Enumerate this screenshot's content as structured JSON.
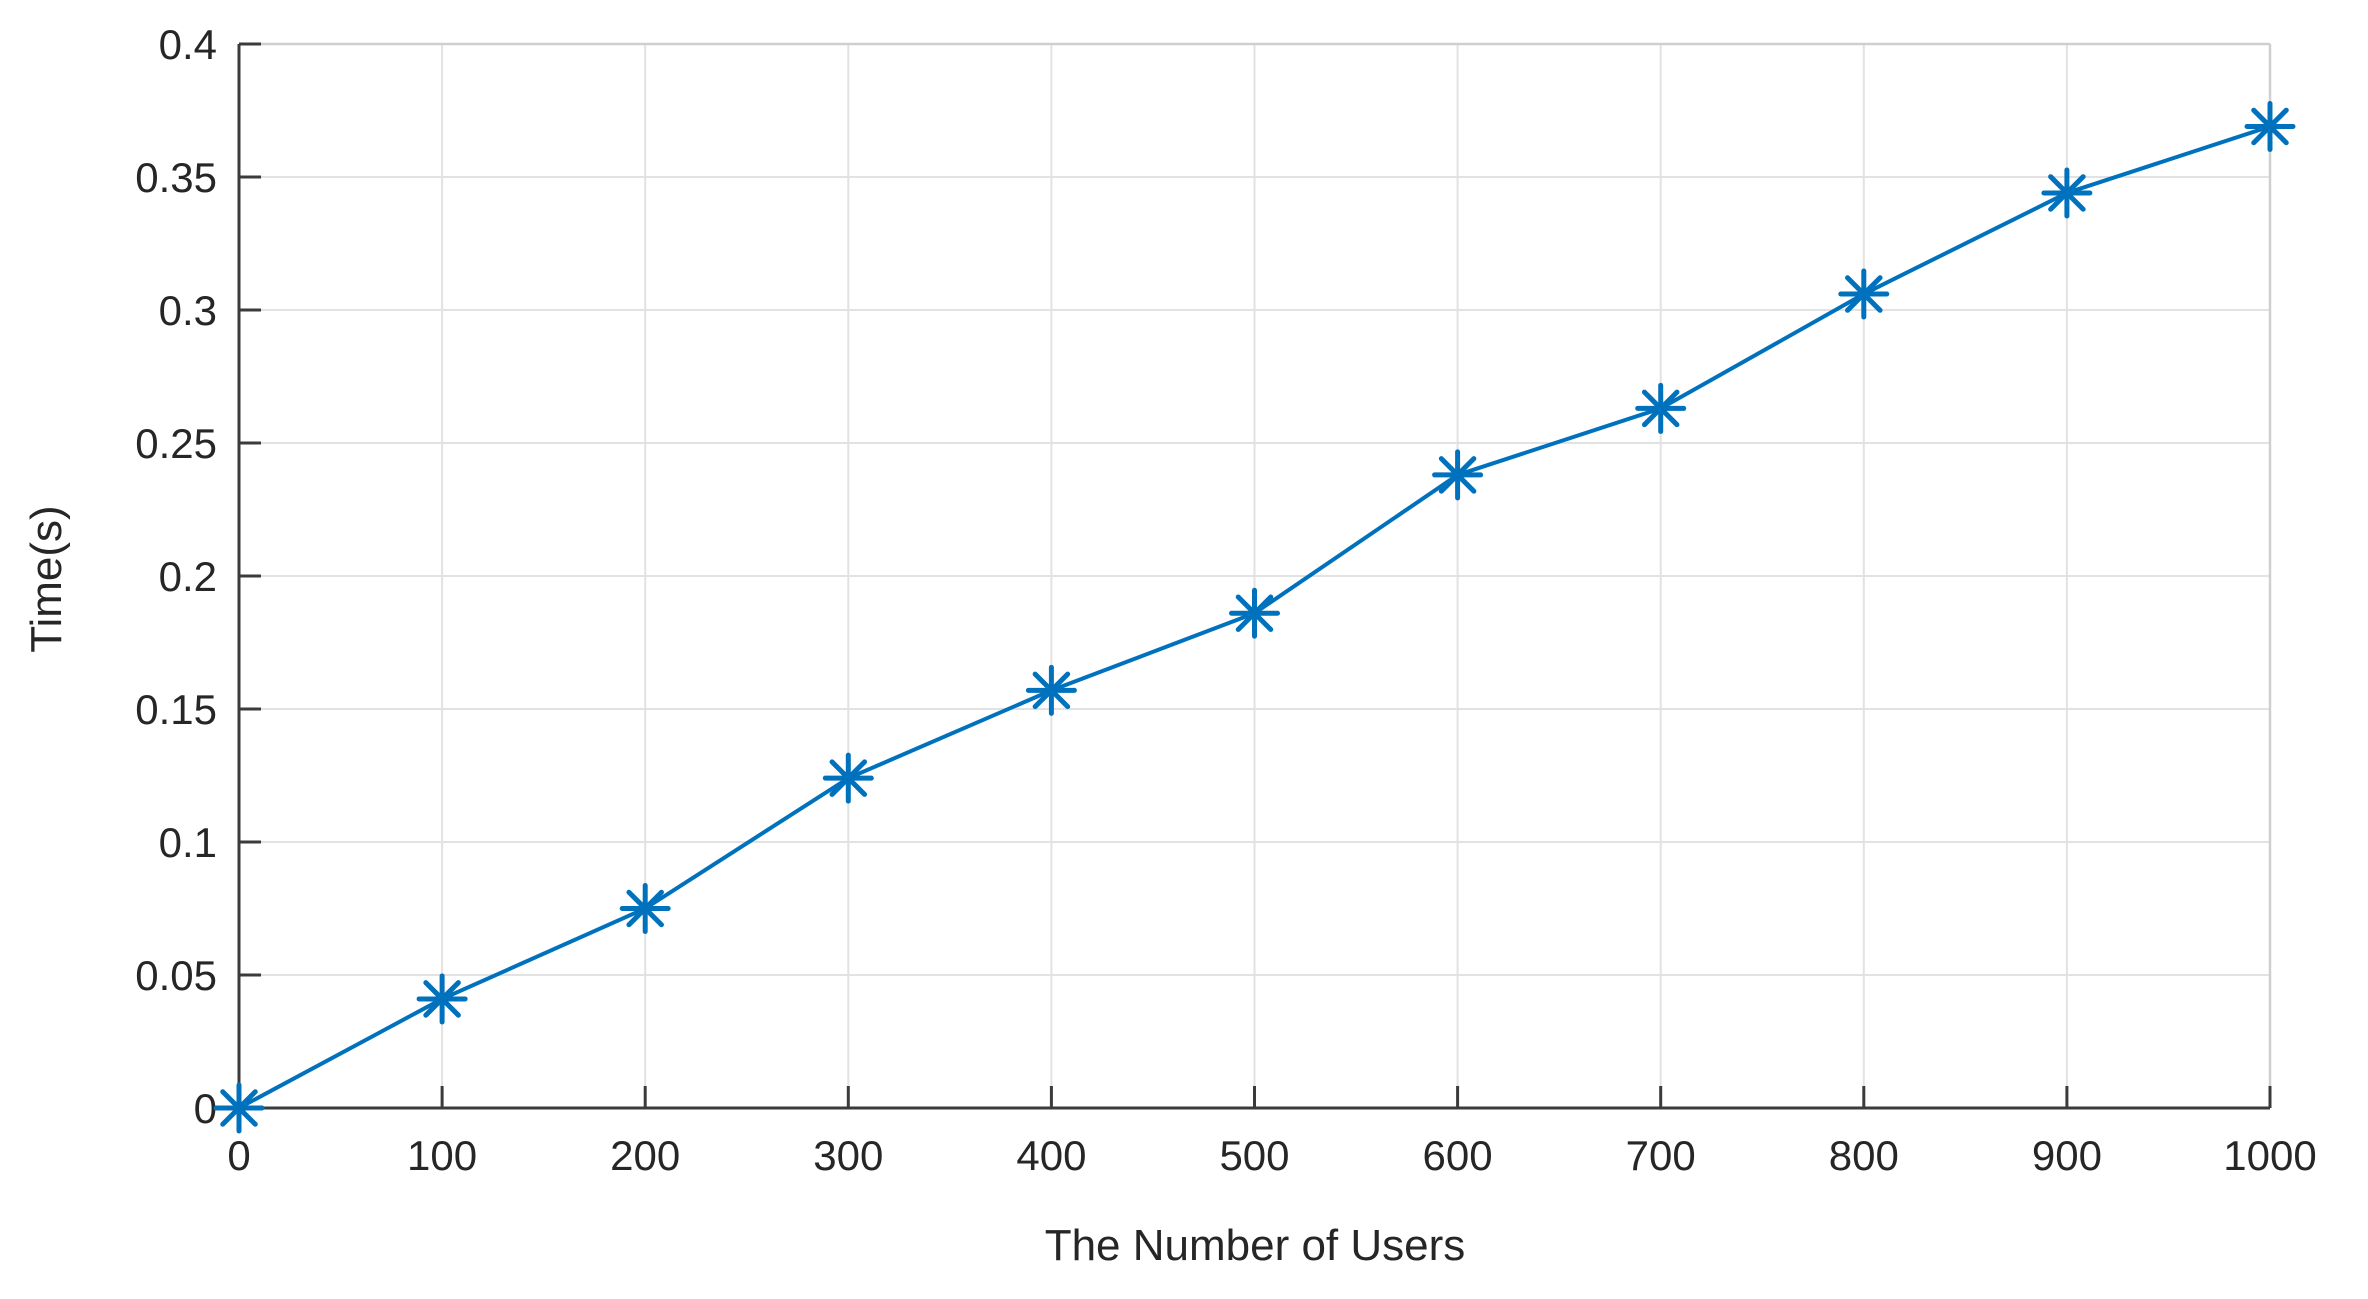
{
  "chart_data": {
    "type": "line",
    "title": "",
    "xlabel": "The Number of Users",
    "ylabel": "Time(s)",
    "x": [
      0,
      100,
      200,
      300,
      400,
      500,
      600,
      700,
      800,
      900,
      1000
    ],
    "series": [
      {
        "name": "time",
        "values": [
          0.0,
          0.041,
          0.075,
          0.124,
          0.157,
          0.186,
          0.238,
          0.263,
          0.306,
          0.344,
          0.369
        ]
      }
    ],
    "xlim": [
      0,
      1000
    ],
    "ylim": [
      0,
      0.4
    ],
    "xtick_labels": [
      "0",
      "100",
      "200",
      "300",
      "400",
      "500",
      "600",
      "700",
      "800",
      "900",
      "1000"
    ],
    "ytick_values": [
      0,
      0.05,
      0.1,
      0.15,
      0.2,
      0.25,
      0.3,
      0.35,
      0.4
    ],
    "ytick_labels": [
      "0",
      "0.05",
      "0.1",
      "0.15",
      "0.2",
      "0.25",
      "0.3",
      "0.35",
      "0.4"
    ],
    "grid": true,
    "legend": null,
    "marker": "asterisk",
    "colors": {
      "line": "#0072BD",
      "grid": "#e2e2e2",
      "box": "#cfcfcf",
      "axis": "#3b3b3b",
      "tick_text": "#262626"
    }
  }
}
